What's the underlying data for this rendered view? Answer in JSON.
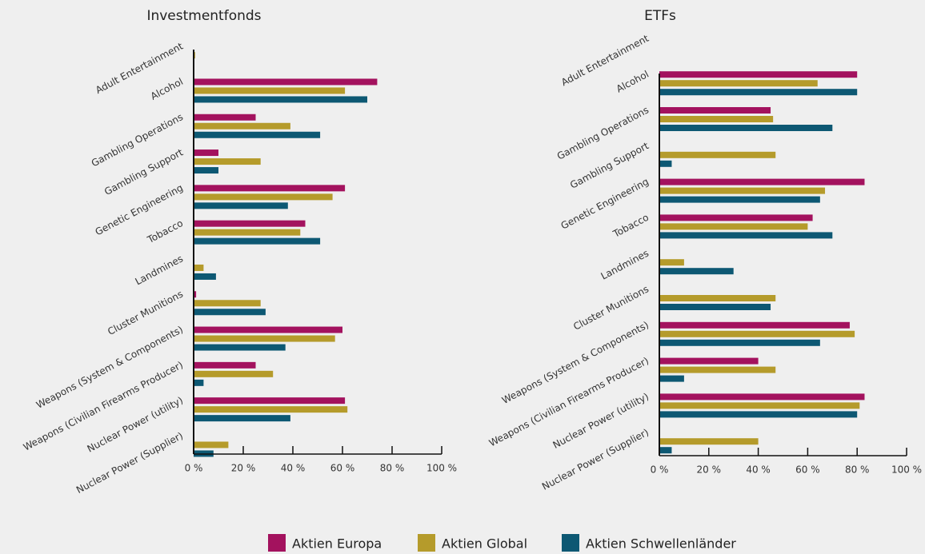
{
  "chart_data": [
    {
      "type": "bar",
      "orientation": "horizontal",
      "title": "Investmentfonds",
      "categories": [
        "Adult Entertainment",
        "Alcohol",
        "Gambling Operations",
        "Gambling Support",
        "Genetic Engineering",
        "Tobacco",
        "Landmines",
        "Cluster Munitions",
        "Weapons (System & Components)",
        "Weapons (Civilian Firearms Producer)",
        "Nuclear Power (utility)",
        "Nuclear Power (Supplier)"
      ],
      "series": [
        {
          "name": "Aktien Europa",
          "color": "#a3125e",
          "values": [
            0,
            74,
            25,
            10,
            61,
            45,
            0.3,
            1,
            60,
            25,
            61,
            0.3
          ]
        },
        {
          "name": "Aktien Global",
          "color": "#b59b2b",
          "values": [
            0.6,
            61,
            39,
            27,
            56,
            43,
            4,
            27,
            57,
            32,
            62,
            14
          ]
        },
        {
          "name": "Aktien Schwellenländer",
          "color": "#0d5873",
          "values": [
            0,
            70,
            51,
            10,
            38,
            51,
            9,
            29,
            37,
            4,
            39,
            8
          ]
        }
      ],
      "xlim": [
        0,
        100
      ],
      "xticks": [
        {
          "value": 0,
          "label": "0 %"
        },
        {
          "value": 20,
          "label": "20 %"
        },
        {
          "value": 40,
          "label": "40 %"
        },
        {
          "value": 60,
          "label": "60 %"
        },
        {
          "value": 80,
          "label": "80 %"
        },
        {
          "value": 100,
          "label": "100 %"
        }
      ]
    },
    {
      "type": "bar",
      "orientation": "horizontal",
      "title": "ETFs",
      "categories": [
        "Adult Entertainment",
        "Alcohol",
        "Gambling Operations",
        "Gambling Support",
        "Genetic Engineering",
        "Tobacco",
        "Landmines",
        "Cluster Munitions",
        "Weapons (System & Components)",
        "Weapons (Civilian Firearms Producer)",
        "Nuclear Power (utility)",
        "Nuclear Power (Supplier)"
      ],
      "series": [
        {
          "color": "#a3125e",
          "values": [
            0,
            80,
            45,
            0,
            83,
            62,
            0,
            0,
            77,
            40,
            83,
            0
          ]
        },
        {
          "color": "#b59b2b",
          "values": [
            0,
            64,
            46,
            47,
            67,
            60,
            10,
            47,
            79,
            47,
            81,
            40
          ]
        },
        {
          "color": "#0d5873",
          "values": [
            0,
            80,
            70,
            5,
            65,
            70,
            30,
            45,
            65,
            10,
            80,
            5
          ]
        }
      ],
      "xlim": [
        0,
        100
      ],
      "xticks": [
        {
          "value": 0,
          "label": "0 %"
        },
        {
          "value": 20,
          "label": "20 %"
        },
        {
          "value": 40,
          "label": "40 %"
        },
        {
          "value": 60,
          "label": "60 %"
        },
        {
          "value": 80,
          "label": "80 %"
        },
        {
          "value": 100,
          "label": "100 %"
        }
      ]
    }
  ]
}
